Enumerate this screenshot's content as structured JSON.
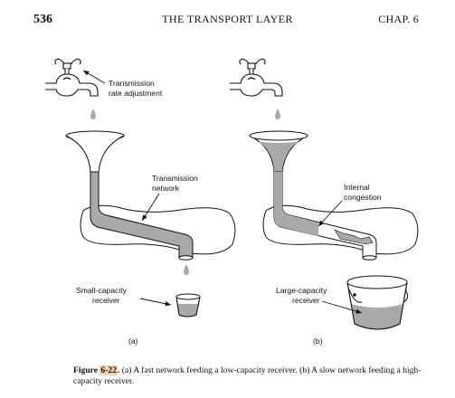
{
  "header": {
    "page_number": "536",
    "running_title": "THE TRANSPORT LAYER",
    "chapter": "CHAP. 6"
  },
  "figure": {
    "labels": {
      "transmission_rate_adjustment_line1": "Transmission",
      "transmission_rate_adjustment_line2": "rate adjustment",
      "transmission_network_line1": "Transmission",
      "transmission_network_line2": "network",
      "small_receiver_line1": "Small-capacity",
      "small_receiver_line2": "receiver",
      "internal_congestion_line1": "Internal",
      "internal_congestion_line2": "congestion",
      "large_receiver_line1": "Large-capacity",
      "large_receiver_line2": "receiver",
      "panel_a": "(a)",
      "panel_b": "(b)"
    }
  },
  "caption": {
    "figure_word": "Figure ",
    "figure_number": "6-22",
    "figure_period": ".",
    "text": " (a) A fast network feeding a low-capacity receiver. (b) A slow network feeding a high-capacity receiver."
  },
  "colors": {
    "fluid": "#a9a9a9",
    "ink": "#111111",
    "highlight": "#f2cfa9"
  }
}
